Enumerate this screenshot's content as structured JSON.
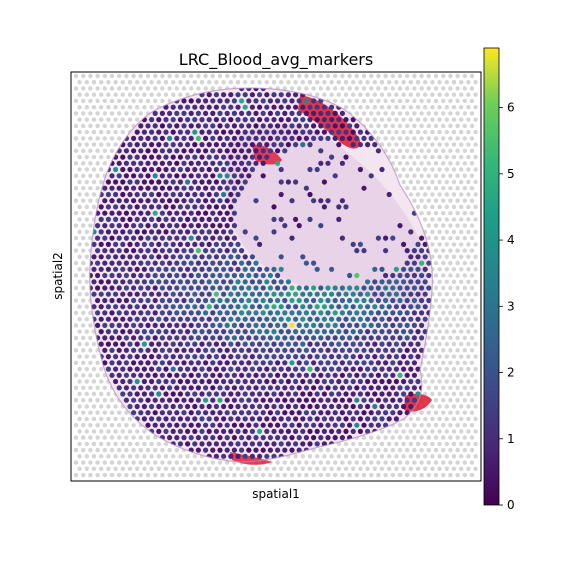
{
  "chart_data": {
    "type": "scatter",
    "subtype": "spatial-transcriptomics-spot-plot",
    "title": "LRC_Blood_avg_markers",
    "xlabel": "spatial1",
    "ylabel": "spatial2",
    "x_ticks": "none",
    "y_ticks": "none",
    "grid": false,
    "background": "H&E tissue image",
    "colormap": "viridis",
    "colorbar": {
      "label": "",
      "range": [
        0,
        6.9
      ],
      "ticks": [
        0,
        1,
        2,
        3,
        4,
        5,
        6
      ],
      "tick_labels": [
        "0",
        "1",
        "2",
        "3",
        "4",
        "5",
        "6"
      ],
      "placement": "right"
    },
    "typical_value": 1.0,
    "higher_value_region": "central band of the tissue, values ~2-4",
    "colors": {
      "low": "#440154",
      "mid": "#21918c",
      "high": "#fde725",
      "tissue_stain": "#c77dc4",
      "blood": "#e0213a",
      "empty_spot": "#d4d4d4"
    }
  }
}
